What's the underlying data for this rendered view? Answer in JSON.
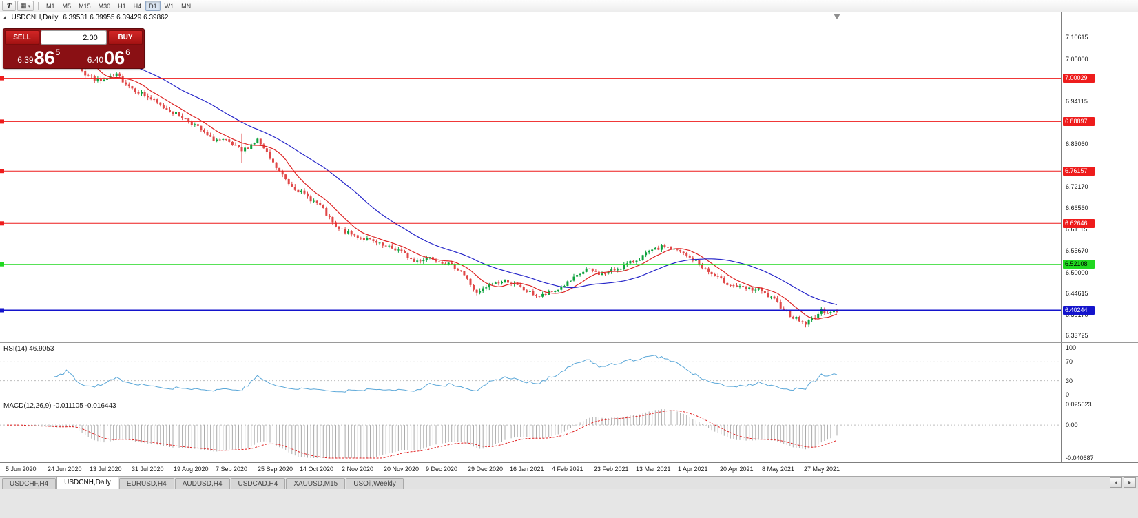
{
  "toolbar": {
    "templates_label": "T",
    "layouts_icon": "▦",
    "layouts_arrow": "▾",
    "timeframes": [
      "M1",
      "M5",
      "M15",
      "M30",
      "H1",
      "H4",
      "D1",
      "W1",
      "MN"
    ],
    "active_timeframe": "D1"
  },
  "chart_header": {
    "collapse_icon": "▴",
    "symbol_title": "USDCNH,Daily",
    "ohlc": "6.39531 6.39955 6.39429 6.39862"
  },
  "trade_panel": {
    "sell_label": "SELL",
    "buy_label": "BUY",
    "volume_value": "2.00",
    "dropdown_icon": "▾",
    "sell_price": {
      "prefix": "6.39",
      "big": "86",
      "pip": "5"
    },
    "buy_price": {
      "prefix": "6.40",
      "big": "06",
      "pip": "6"
    }
  },
  "price_axis": {
    "ticks": [
      "7.10615",
      "7.05000",
      "6.94115",
      "6.83060",
      "6.72170",
      "6.66560",
      "6.61115",
      "6.55670",
      "6.50000",
      "6.44615",
      "6.39170",
      "6.33725"
    ]
  },
  "rsi_panel": {
    "label": "RSI(14) 46.9053",
    "ticks": [
      "100",
      "70",
      "30",
      "0"
    ],
    "color": "#5aa7d8"
  },
  "macd_panel": {
    "label": "MACD(12,26,9) -0.011105 -0.016443",
    "ticks": [
      "0.025623",
      "0.00",
      "-0.040687"
    ],
    "histogram_color": "#ababab",
    "signal_color": "#e02020"
  },
  "time_axis": [
    "5 Jun 2020",
    "24 Jun 2020",
    "13 Jul 2020",
    "31 Jul 2020",
    "19 Aug 2020",
    "7 Sep 2020",
    "25 Sep 2020",
    "14 Oct 2020",
    "2 Nov 2020",
    "20 Nov 2020",
    "9 Dec 2020",
    "29 Dec 2020",
    "16 Jan 2021",
    "4 Feb 2021",
    "23 Feb 2021",
    "13 Mar 2021",
    "1 Apr 2021",
    "20 Apr 2021",
    "8 May 2021",
    "27 May 2021"
  ],
  "tabs": {
    "items": [
      {
        "label": "USDCHF,H4"
      },
      {
        "label": "USDCNH,Daily",
        "active": true
      },
      {
        "label": "EURUSD,H4"
      },
      {
        "label": "AUDUSD,H4"
      },
      {
        "label": "USDCAD,H4"
      },
      {
        "label": "XAUUSD,M15"
      },
      {
        "label": "USOil,Weekly"
      }
    ],
    "scroll_left_icon": "◂",
    "scroll_right_icon": "▸"
  },
  "chart_data": {
    "type": "candlestick",
    "symbol": "USDCNH",
    "period": "Daily",
    "last_ohlc": {
      "open": 6.39531,
      "high": 6.39955,
      "low": 6.39429,
      "close": 6.39862
    },
    "bid": 6.39865,
    "ask": 6.40066,
    "price_range_visible": [
      6.32,
      7.17
    ],
    "x_range": [
      "5 Jun 2020",
      "10 Jun 2021"
    ],
    "weekly_close_anchors": [
      7.085,
      7.072,
      7.076,
      7.068,
      7.075,
      7.01,
      6.992,
      7.008,
      6.975,
      6.952,
      6.925,
      6.905,
      6.88,
      6.845,
      6.838,
      6.812,
      6.842,
      6.78,
      6.73,
      6.7,
      6.672,
      6.615,
      6.598,
      6.585,
      6.568,
      6.558,
      6.528,
      6.54,
      6.525,
      6.505,
      6.445,
      6.472,
      6.478,
      6.455,
      6.438,
      6.452,
      6.478,
      6.508,
      6.495,
      6.51,
      6.528,
      6.552,
      6.568,
      6.552,
      6.528,
      6.495,
      6.472,
      6.458,
      6.455,
      6.428,
      6.39,
      6.368,
      6.4,
      6.3986
    ],
    "long_range_bars": [
      {
        "bar": 75,
        "up": 0.035,
        "down": 0.025
      },
      {
        "bar": 107,
        "up": 0.15,
        "down": 0.015
      }
    ],
    "levels": [
      {
        "label": "7.00029",
        "price": 7.00029,
        "color": "#ee1c1c"
      },
      {
        "label": "6.88897",
        "price": 6.88897,
        "color": "#ee1c1c"
      },
      {
        "label": "6.76157",
        "price": 6.76157,
        "color": "#ee1c1c"
      },
      {
        "label": "6.62646",
        "price": 6.62646,
        "color": "#ee1c1c"
      },
      {
        "label": "6.52108",
        "price": 6.52108,
        "color": "#20d820",
        "text_dark": true
      },
      {
        "label": "6.40244",
        "price": 6.40244,
        "color": "#1414cc",
        "width": 2
      }
    ],
    "moving_averages": [
      {
        "period": 10,
        "color": "#dd2424"
      },
      {
        "period": 34,
        "color": "#2626c9"
      }
    ],
    "rsi": {
      "period": 14,
      "last_value": 46.9053
    },
    "macd": {
      "fast": 12,
      "slow": 26,
      "signal": 9,
      "last_macd": -0.011105,
      "last_signal": -0.016443
    },
    "colors": {
      "up": "#0da23e",
      "down": "#e04848",
      "background": "#ffffff"
    }
  }
}
